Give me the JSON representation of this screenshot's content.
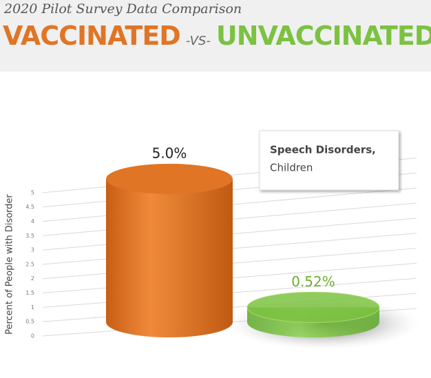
{
  "header": {
    "subtitle": "2020 Pilot Survey Data Comparison",
    "left": "VACCINATED",
    "vs": "-VS-",
    "right": "UNVACCINATED"
  },
  "chart_data": {
    "type": "bar",
    "y_label": "Percent of People with Disorder",
    "annotation": [
      "Speech Disorders,",
      "Children"
    ],
    "categories": [
      null,
      null
    ],
    "values": [
      5.0,
      0.52
    ],
    "value_labels": [
      "5.0%",
      "0.52%"
    ],
    "colors": [
      "#e07526",
      "#7cc242"
    ],
    "ylim": [
      0,
      5.5
    ],
    "yticks": [
      0,
      0.5,
      1,
      1.5,
      2,
      2.5,
      3,
      3.5,
      4,
      4.5,
      5
    ],
    "grid": true
  }
}
